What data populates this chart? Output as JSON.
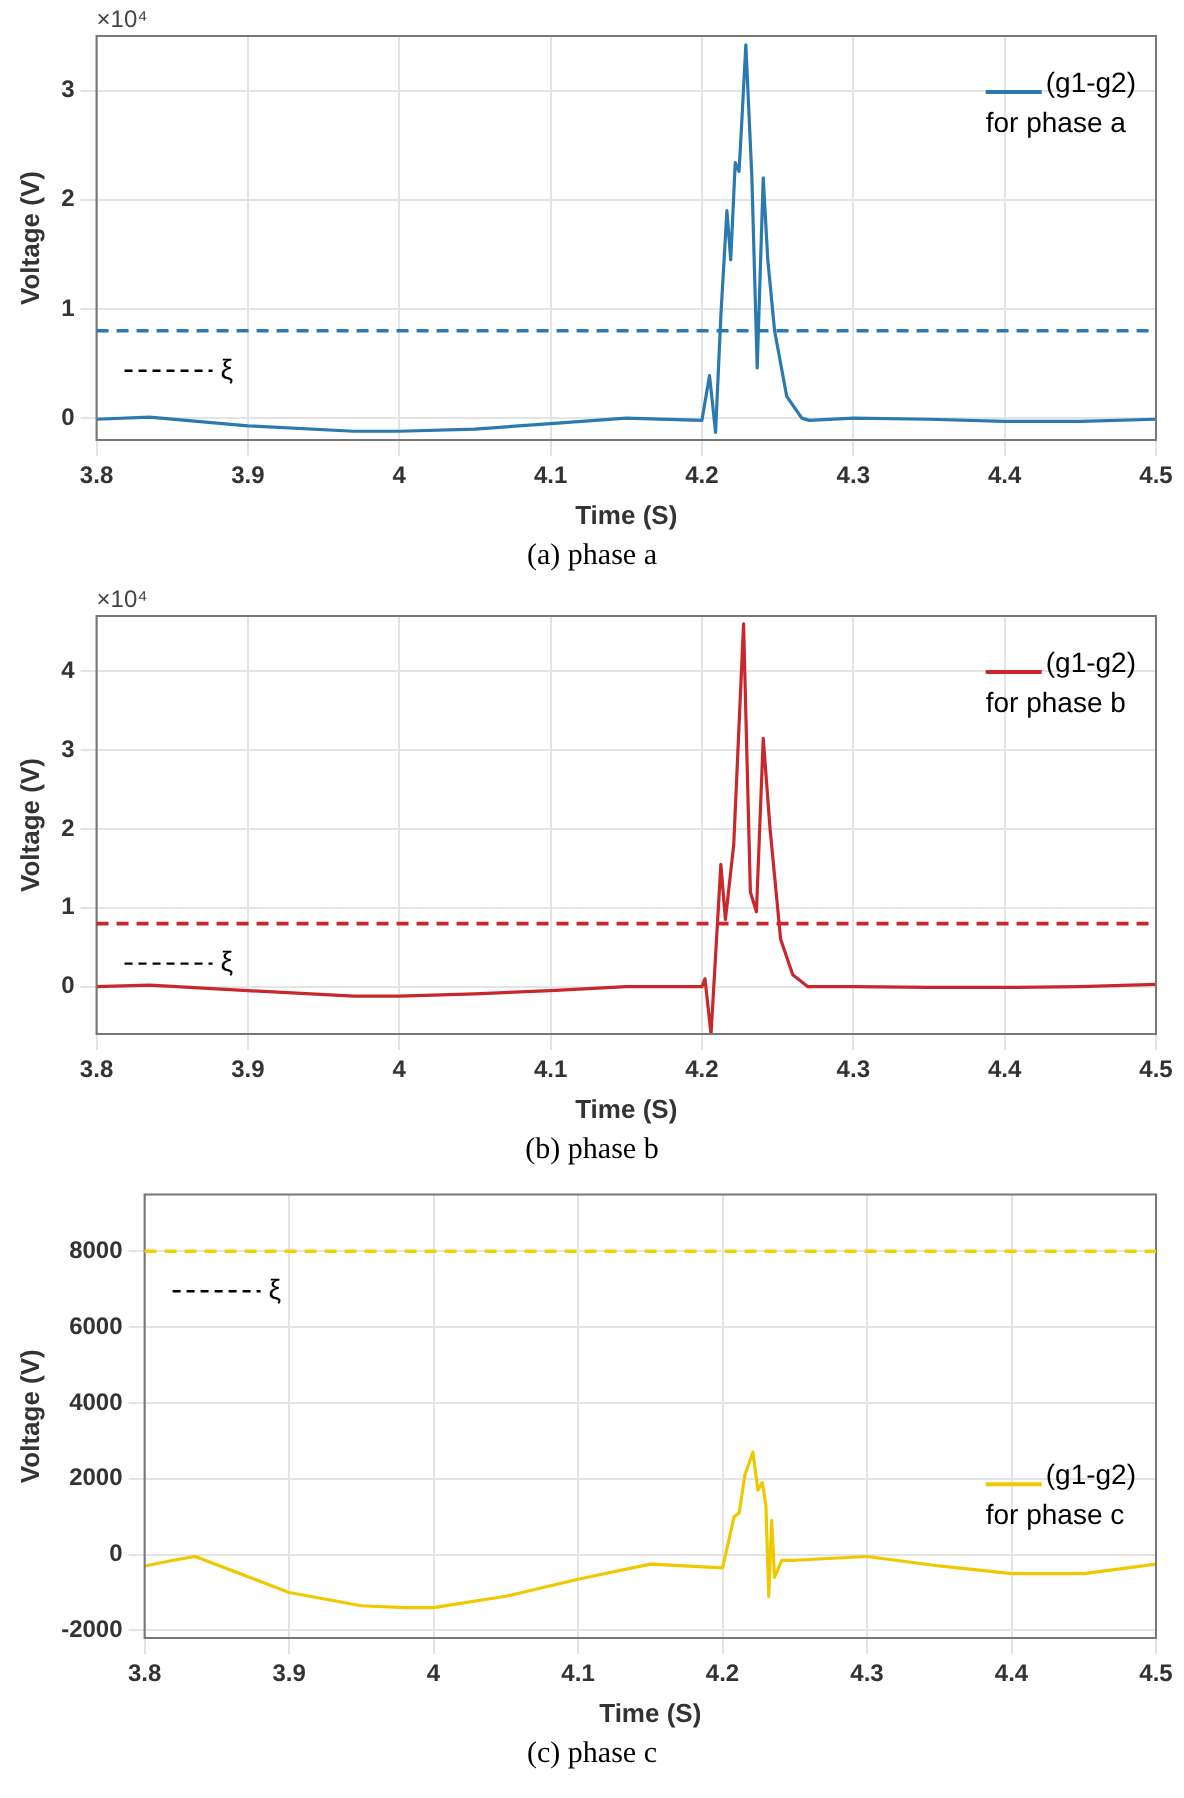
{
  "chart_data": [
    {
      "type": "line",
      "title": "(a) phase a",
      "xlabel": "Time (S)",
      "ylabel": "Voltage (V)",
      "annotations": [
        "×10⁴"
      ],
      "xlim": [
        3.8,
        4.5
      ],
      "xticks": [
        3.8,
        3.9,
        4,
        4.1,
        4.2,
        4.3,
        4.4,
        4.5
      ],
      "ylim": [
        -0.2,
        3.5
      ],
      "yticks": [
        0,
        1,
        2,
        3
      ],
      "grid": true,
      "legend": "top right",
      "marker": "none",
      "line_style": "solid",
      "ref_lines": [
        {
          "axis": "y",
          "value": 0.8,
          "label": "ξ",
          "color": "#2a7ab0",
          "line_style": "dashed"
        }
      ],
      "series": [
        {
          "name": "(g1-g2) for phase a",
          "color": "#2a7ab0",
          "x": [
            3.8,
            3.835,
            3.9,
            3.97,
            4.0,
            4.05,
            4.1,
            4.15,
            4.2,
            4.205,
            4.209,
            4.2125,
            4.2165,
            4.219,
            4.222,
            4.2245,
            4.2255,
            4.229,
            4.233,
            4.2365,
            4.2405,
            4.2435,
            4.248,
            4.256,
            4.266,
            4.271,
            4.3,
            4.35,
            4.4,
            4.45,
            4.5
          ],
          "values": [
            -0.01,
            0.01,
            -0.07,
            -0.12,
            -0.12,
            -0.1,
            -0.05,
            0,
            -0.02,
            0.39,
            -0.13,
            0.94,
            1.9,
            1.45,
            2.34,
            2.26,
            2.5,
            3.42,
            2.2,
            0.46,
            2.2,
            1.45,
            0.8,
            0.2,
            0,
            -0.02,
            0,
            -0.01,
            -0.03,
            -0.03,
            -0.01
          ]
        }
      ]
    },
    {
      "type": "line",
      "title": "(b) phase b",
      "xlabel": "Time (S)",
      "ylabel": "Voltage (V)",
      "annotations": [
        "×10⁴"
      ],
      "xlim": [
        3.8,
        4.5
      ],
      "xticks": [
        3.8,
        3.9,
        4,
        4.1,
        4.2,
        4.3,
        4.4,
        4.5
      ],
      "ylim": [
        -0.6,
        4.7
      ],
      "yticks": [
        0,
        1,
        2,
        3,
        4
      ],
      "grid": true,
      "legend": "top right",
      "marker": "none",
      "line_style": "solid",
      "ref_lines": [
        {
          "axis": "y",
          "value": 0.8,
          "label": "ξ",
          "color": "#c8282d",
          "line_style": "dashed"
        }
      ],
      "series": [
        {
          "name": "(g1-g2) for phase b",
          "color": "#c8282d",
          "x": [
            3.8,
            3.835,
            3.9,
            3.97,
            4.0,
            4.05,
            4.1,
            4.15,
            4.2,
            4.202,
            4.206,
            4.2125,
            4.2155,
            4.221,
            4.2275,
            4.232,
            4.236,
            4.2405,
            4.245,
            4.252,
            4.26,
            4.27,
            4.3,
            4.35,
            4.4,
            4.45,
            4.5
          ],
          "values": [
            0,
            0.02,
            -0.05,
            -0.12,
            -0.12,
            -0.09,
            -0.05,
            0,
            0,
            0.1,
            -0.6,
            1.55,
            0.85,
            1.8,
            4.6,
            1.2,
            0.95,
            3.15,
            2,
            0.6,
            0.15,
            0,
            0,
            -0.01,
            -0.01,
            0,
            0.03
          ]
        }
      ]
    },
    {
      "type": "line",
      "title": "(c) phase c",
      "xlabel": "Time (S)",
      "ylabel": "Voltage (V)",
      "xlim": [
        3.8,
        4.5
      ],
      "xticks": [
        3.8,
        3.9,
        4,
        4.1,
        4.2,
        4.3,
        4.4,
        4.5
      ],
      "ylim": [
        -2200,
        9500
      ],
      "yticks": [
        -2000,
        0,
        2000,
        4000,
        6000,
        8000
      ],
      "grid": true,
      "legend": "right",
      "marker": "none",
      "line_style": "solid",
      "ref_lines": [
        {
          "axis": "y",
          "value": 8000,
          "label": "ξ",
          "color": "#f5d000",
          "line_style": "dashed"
        }
      ],
      "series": [
        {
          "name": "(g1-g2) for phase c",
          "color": "#f0c800",
          "x": [
            3.8,
            3.82,
            3.835,
            3.9,
            3.95,
            3.98,
            4.0,
            4.05,
            4.1,
            4.15,
            4.2,
            4.208,
            4.2115,
            4.2155,
            4.221,
            4.2245,
            4.2275,
            4.23,
            4.232,
            4.234,
            4.236,
            4.241,
            4.25,
            4.3,
            4.35,
            4.4,
            4.45,
            4.5
          ],
          "values": [
            -300,
            -150,
            -50,
            -1000,
            -1350,
            -1400,
            -1400,
            -1100,
            -650,
            -250,
            -350,
            1000,
            1100,
            2100,
            2700,
            1700,
            1900,
            1300,
            -1100,
            900,
            -600,
            -150,
            -150,
            -50,
            -300,
            -500,
            -500,
            -250
          ]
        }
      ]
    }
  ]
}
